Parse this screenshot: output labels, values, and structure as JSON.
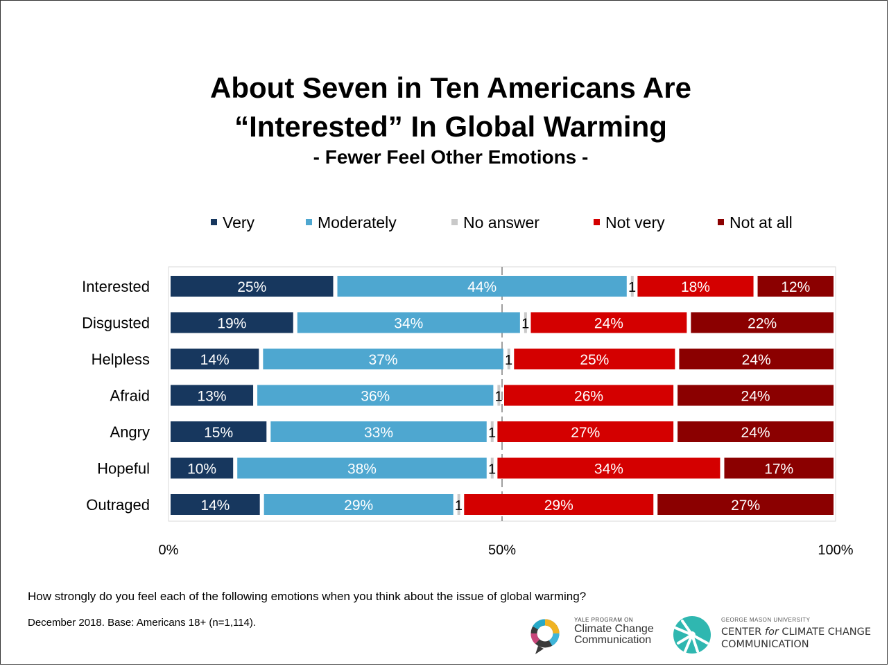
{
  "title_line1": "About Seven in Ten Americans Are",
  "title_line2": "“Interested” In Global Warming",
  "subtitle": "- Fewer Feel Other Emotions -",
  "question": "How strongly do you feel each of the following emotions when you think about the issue of global warming?",
  "base_note": "December 2018. Base: Americans 18+ (n=1,114).",
  "logos": {
    "yale_small": "YALE PROGRAM ON",
    "yale_line1": "Climate Change",
    "yale_line2": "Communication",
    "gmu_small": "GEORGE MASON UNIVERSITY",
    "gmu_line1_a": "CENTER ",
    "gmu_line1_b": "for",
    "gmu_line1_c": " CLIMATE CHANGE",
    "gmu_line2": "COMMUNICATION"
  },
  "chart_data": {
    "type": "bar",
    "orientation": "horizontal",
    "stacked": true,
    "categories": [
      "Interested",
      "Disgusted",
      "Helpless",
      "Afraid",
      "Angry",
      "Hopeful",
      "Outraged"
    ],
    "series": [
      {
        "name": "Very",
        "color": "#17375e",
        "values": [
          25,
          19,
          14,
          13,
          15,
          10,
          14
        ],
        "labels": [
          "25%",
          "19%",
          "14%",
          "13%",
          "15%",
          "10%",
          "14%"
        ]
      },
      {
        "name": "Moderately",
        "color": "#4ea7d0",
        "values": [
          44,
          34,
          37,
          36,
          33,
          38,
          29
        ],
        "labels": [
          "44%",
          "34%",
          "37%",
          "36%",
          "33%",
          "38%",
          "29%"
        ]
      },
      {
        "name": "No answer",
        "color": "#c9c9c9",
        "values": [
          1,
          1,
          1,
          1,
          1,
          1,
          1
        ],
        "labels": [
          "1",
          "1",
          "1",
          "1",
          "1",
          "1",
          "1"
        ]
      },
      {
        "name": "Not very",
        "color": "#d40000",
        "values": [
          18,
          24,
          25,
          26,
          27,
          34,
          29
        ],
        "labels": [
          "18%",
          "24%",
          "25%",
          "26%",
          "27%",
          "34%",
          "29%"
        ]
      },
      {
        "name": "Not at all",
        "color": "#8b0000",
        "values": [
          12,
          22,
          24,
          24,
          24,
          17,
          27
        ],
        "labels": [
          "12%",
          "22%",
          "24%",
          "24%",
          "24%",
          "17%",
          "27%"
        ]
      }
    ],
    "xlim": [
      0,
      100
    ],
    "xticks": [
      0,
      50,
      100
    ],
    "xtick_labels": [
      "0%",
      "50%",
      "100%"
    ],
    "reference_line": 50,
    "legend_position": "top"
  }
}
